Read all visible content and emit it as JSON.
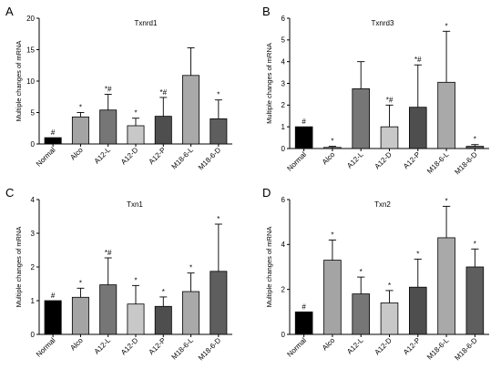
{
  "colors": {
    "normal": "#000000",
    "alco": "#a4a4a4",
    "a12_l": "#767676",
    "a12_d": "#c8c8c8",
    "a12_p": "#4e4e4e",
    "m18_l": "#a9a9a9",
    "m18_d": "#5e5e5e"
  },
  "chart_data": [
    {
      "panel": "A",
      "type": "bar",
      "title": "Txnrd1",
      "ylabel": "Multiple changes of mRNA",
      "xlabel": "",
      "ylim": [
        0,
        20
      ],
      "yticks": [
        "0",
        "5",
        "10",
        "15",
        "20"
      ],
      "grid": false,
      "categories": [
        "Normal",
        "Alco",
        "A12-L",
        "A12-D",
        "A12-P",
        "M18-6-L",
        "M18-6-D"
      ],
      "values": [
        1.0,
        4.3,
        5.4,
        2.9,
        4.4,
        10.9,
        4.0
      ],
      "errors": [
        0,
        0.7,
        2.5,
        1.2,
        3.0,
        4.4,
        3.0
      ],
      "annotations": [
        "#",
        "*",
        "*#",
        "*",
        "*#",
        "",
        "*"
      ]
    },
    {
      "panel": "B",
      "type": "bar",
      "title": "Txnrd3",
      "ylabel": "Multiple changes of mRNA",
      "xlabel": "",
      "ylim": [
        0,
        6
      ],
      "yticks": [
        "0",
        "1",
        "2",
        "3",
        "4",
        "5",
        "6"
      ],
      "grid": false,
      "categories": [
        "Normal",
        "Alco",
        "A12-L",
        "A12-D",
        "A12-P",
        "M18-6-L",
        "M18-6-D"
      ],
      "values": [
        1.0,
        0.05,
        2.75,
        1.0,
        1.9,
        3.05,
        0.1
      ],
      "errors": [
        0,
        0.05,
        1.25,
        1.0,
        1.95,
        2.35,
        0.08
      ],
      "annotations": [
        "#",
        "*",
        "",
        "*#",
        "*#",
        "*",
        "*"
      ]
    },
    {
      "panel": "C",
      "type": "bar",
      "title": "Txn1",
      "ylabel": "Multiple changes of mRNA",
      "xlabel": "",
      "ylim": [
        0,
        4
      ],
      "yticks": [
        "0",
        "1",
        "2",
        "3",
        "4"
      ],
      "grid": false,
      "categories": [
        "Normal",
        "Alco",
        "A12-L",
        "A12-D",
        "A12-P",
        "M18-6-L",
        "M18-6-D"
      ],
      "values": [
        1.0,
        1.1,
        1.47,
        0.9,
        0.83,
        1.27,
        1.87
      ],
      "errors": [
        0,
        0.27,
        0.8,
        0.55,
        0.28,
        0.55,
        1.4
      ],
      "annotations": [
        "#",
        "*",
        "*#",
        "*",
        "*",
        "*",
        "*"
      ]
    },
    {
      "panel": "D",
      "type": "bar",
      "title": "Txn2",
      "ylabel": "Multiple changes of mRNA",
      "xlabel": "",
      "ylim": [
        0,
        6
      ],
      "yticks": [
        "0",
        "2",
        "4",
        "6"
      ],
      "grid": false,
      "categories": [
        "Normal",
        "Alco",
        "A12-L",
        "A12-D",
        "A12-P",
        "M18-6-L",
        "M18-6-D"
      ],
      "values": [
        1.0,
        3.3,
        1.8,
        1.4,
        2.1,
        4.3,
        3.0
      ],
      "errors": [
        0,
        0.9,
        0.75,
        0.55,
        1.25,
        1.4,
        0.8
      ],
      "annotations": [
        "#",
        "*",
        "*",
        "*",
        "*",
        "*",
        "*"
      ]
    }
  ]
}
